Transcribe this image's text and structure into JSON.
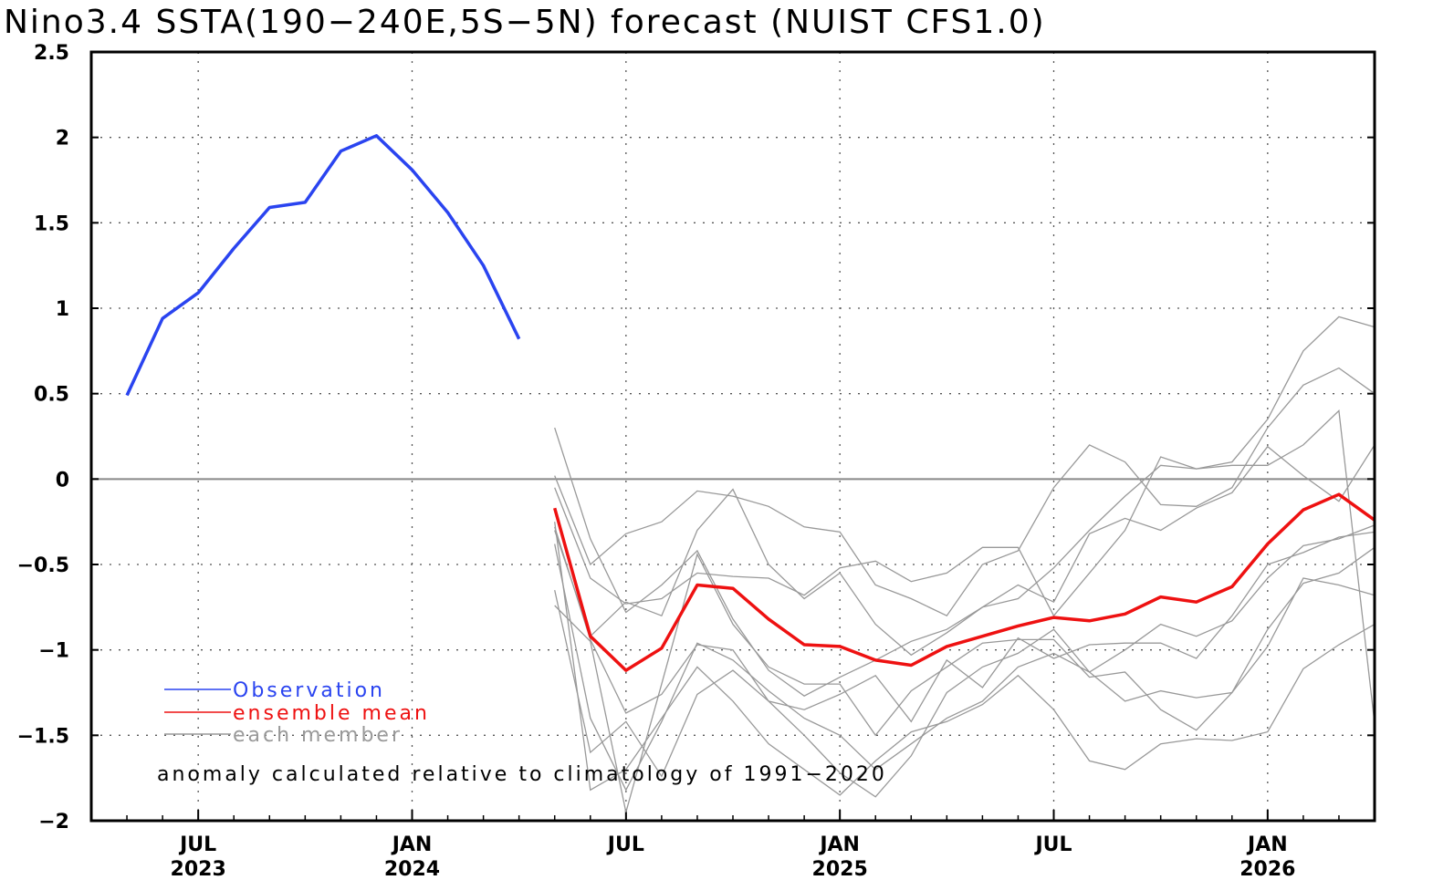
{
  "chart_data": {
    "type": "line",
    "title": "Nino3.4 SSTA(190-240E,5S-5N) forecast (NUIST CFS1.0)",
    "note": "anomaly calculated relative to climatology of 1991-2020",
    "xlim": [
      "2023-04",
      "2026-04"
    ],
    "ylim": [
      -2,
      2.5
    ],
    "yticks": [
      2.5,
      2,
      1.5,
      1,
      0.5,
      0,
      -0.5,
      -1,
      -1.5,
      -2
    ],
    "ytick_labels": [
      "2.5",
      "2",
      "1.5",
      "1",
      "0.5",
      "0",
      "-0.5",
      "-1",
      "-1.5",
      "-2"
    ],
    "xticks": [
      {
        "date": "2023-07",
        "month": "JUL",
        "year": "2023"
      },
      {
        "date": "2024-01",
        "month": "JAN",
        "year": "2024"
      },
      {
        "date": "2024-07",
        "month": "JUL",
        "year": ""
      },
      {
        "date": "2025-01",
        "month": "JAN",
        "year": "2025"
      },
      {
        "date": "2025-07",
        "month": "JUL",
        "year": ""
      },
      {
        "date": "2026-01",
        "month": "JAN",
        "year": "2026"
      }
    ],
    "grid": true,
    "legend_position": "bottom-left",
    "observation": {
      "name": "Observation",
      "color": "#2a44f0",
      "x": [
        "2023-05",
        "2023-06",
        "2023-07",
        "2023-08",
        "2023-09",
        "2023-10",
        "2023-11",
        "2023-12",
        "2024-01",
        "2024-02",
        "2024-03",
        "2024-04"
      ],
      "values": [
        0.49,
        0.94,
        1.09,
        1.35,
        1.59,
        1.62,
        1.92,
        2.01,
        1.81,
        1.56,
        1.25,
        0.82
      ]
    },
    "ensemble_mean": {
      "name": "ensemble mean",
      "color": "#ee1111",
      "x": [
        "2024-05",
        "2024-06",
        "2024-07",
        "2024-08",
        "2024-09",
        "2024-10",
        "2024-11",
        "2024-12",
        "2025-01",
        "2025-02",
        "2025-03",
        "2025-04",
        "2025-05",
        "2025-06",
        "2025-07",
        "2025-08",
        "2025-09",
        "2025-10",
        "2025-11",
        "2025-12",
        "2026-01",
        "2026-02",
        "2026-03",
        "2026-04"
      ],
      "values": [
        -0.17,
        -0.92,
        -1.12,
        -0.99,
        -0.62,
        -0.64,
        -0.82,
        -0.97,
        -0.98,
        -1.06,
        -1.09,
        -0.98,
        -0.92,
        -0.86,
        -0.81,
        -0.83,
        -0.79,
        -0.69,
        -0.72,
        -0.63,
        -0.38,
        -0.18,
        -0.09,
        -0.24
      ]
    },
    "members": {
      "name": "each member",
      "color": "#999999",
      "x": [
        "2024-05",
        "2024-06",
        "2024-07",
        "2024-08",
        "2024-09",
        "2024-10",
        "2024-11",
        "2024-12",
        "2025-01",
        "2025-02",
        "2025-03",
        "2025-04",
        "2025-05",
        "2025-06",
        "2025-07",
        "2025-08",
        "2025-09",
        "2025-10",
        "2025-11",
        "2025-12",
        "2026-01",
        "2026-02",
        "2026-03",
        "2026-04"
      ],
      "series": [
        [
          0.3,
          -0.35,
          -0.78,
          -0.62,
          -0.42,
          -0.82,
          -1.12,
          -1.27,
          -1.16,
          -1.06,
          -0.95,
          -0.88,
          -0.75,
          -0.7,
          -0.52,
          -0.3,
          -0.1,
          0.08,
          0.06,
          0.1,
          0.35,
          0.75,
          0.95,
          0.89
        ],
        [
          0.02,
          -0.5,
          -0.32,
          -0.25,
          -0.07,
          -0.1,
          -0.16,
          -0.28,
          -0.31,
          -0.62,
          -0.7,
          -0.8,
          -0.5,
          -0.42,
          -0.05,
          0.2,
          0.1,
          -0.15,
          -0.16,
          -0.05,
          0.3,
          0.55,
          0.65,
          0.5
        ],
        [
          -0.05,
          -0.58,
          -0.73,
          -0.7,
          -0.55,
          -0.57,
          -0.58,
          -0.68,
          -0.52,
          -0.48,
          -0.6,
          -0.55,
          -0.4,
          -0.4,
          -0.8,
          -0.55,
          -0.3,
          0.13,
          0.06,
          0.08,
          0.08,
          0.2,
          0.4,
          -1.43
        ],
        [
          -0.3,
          -0.92,
          -0.72,
          -0.8,
          -0.3,
          -0.06,
          -0.5,
          -0.7,
          -0.55,
          -0.85,
          -1.03,
          -0.9,
          -0.75,
          -0.62,
          -0.72,
          -0.32,
          -0.23,
          -0.3,
          -0.17,
          -0.08,
          0.19,
          0.02,
          -0.13,
          0.2
        ],
        [
          -0.38,
          -1.4,
          -1.82,
          -1.42,
          -0.96,
          -1.06,
          -1.24,
          -1.4,
          -1.5,
          -1.7,
          -1.55,
          -1.4,
          -1.3,
          -1.1,
          -1.02,
          -1.13,
          -1.0,
          -0.85,
          -0.92,
          -0.83,
          -0.58,
          -0.39,
          -0.35,
          -0.27
        ],
        [
          -0.74,
          -0.95,
          -1.95,
          -1.2,
          -0.44,
          -0.85,
          -1.1,
          -1.2,
          -1.2,
          -1.5,
          -1.24,
          -1.1,
          -0.96,
          -0.94,
          -0.94,
          -1.16,
          -1.13,
          -1.35,
          -1.47,
          -1.25,
          -0.88,
          -0.61,
          -0.55,
          -0.4
        ],
        [
          -0.28,
          -0.94,
          -1.37,
          -1.26,
          -0.97,
          -1.0,
          -1.3,
          -1.35,
          -1.26,
          -1.15,
          -1.42,
          -1.06,
          -1.22,
          -0.93,
          -1.05,
          -0.97,
          -0.96,
          -0.96,
          -1.05,
          -0.8,
          -0.5,
          -0.43,
          -0.34,
          -0.31
        ],
        [
          -0.25,
          -1.82,
          -1.7,
          -1.4,
          -1.1,
          -1.3,
          -1.55,
          -1.7,
          -1.85,
          -1.65,
          -1.48,
          -1.42,
          -1.32,
          -1.15,
          -1.35,
          -1.65,
          -1.7,
          -1.55,
          -1.52,
          -1.53,
          -1.48,
          -1.11,
          -0.97,
          -0.85
        ],
        [
          -0.65,
          -1.6,
          -1.42,
          -1.74,
          -1.26,
          -1.12,
          -1.3,
          -1.5,
          -1.72,
          -1.86,
          -1.62,
          -1.25,
          -1.1,
          -1.02,
          -0.88,
          -1.13,
          -1.3,
          -1.24,
          -1.28,
          -1.25,
          -0.98,
          -0.58,
          -0.62,
          -0.68
        ]
      ]
    }
  },
  "legend": [
    {
      "label": "Observation",
      "color": "#2a44f0"
    },
    {
      "label": "ensemble mean",
      "color": "#ee1111"
    },
    {
      "label": "each member",
      "color": "#999999"
    }
  ]
}
